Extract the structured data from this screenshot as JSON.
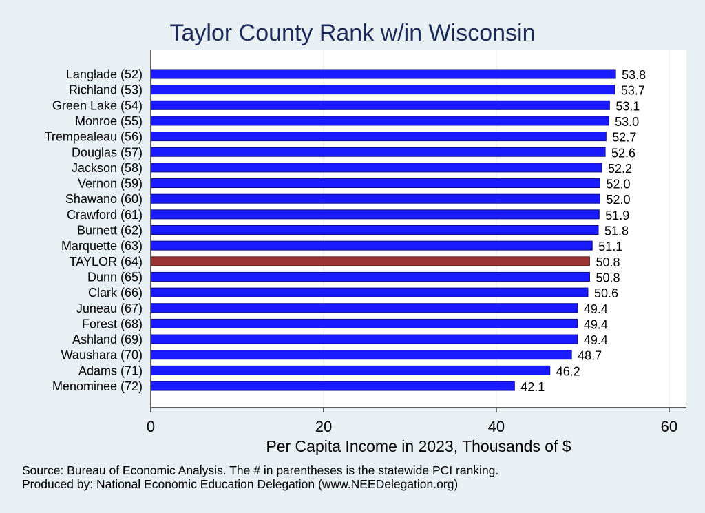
{
  "chart_data": {
    "type": "bar",
    "orientation": "horizontal",
    "title": "Taylor County Rank w/in Wisconsin",
    "xlabel": "Per Capita Income in 2023, Thousands of $",
    "ylabel": "",
    "xlim": [
      0,
      62
    ],
    "xticks": [
      0,
      20,
      40,
      60
    ],
    "grid": true,
    "categories": [
      "Langlade (52)",
      "Richland (53)",
      "Green Lake (54)",
      "Monroe (55)",
      "Trempealeau (56)",
      "Douglas (57)",
      "Jackson (58)",
      "Vernon (59)",
      "Shawano (60)",
      "Crawford (61)",
      "Burnett (62)",
      "Marquette (63)",
      "TAYLOR (64)",
      "Dunn (65)",
      "Clark (66)",
      "Juneau (67)",
      "Forest (68)",
      "Ashland (69)",
      "Waushara (70)",
      "Adams (71)",
      "Menominee (72)"
    ],
    "values": [
      53.8,
      53.7,
      53.1,
      53.0,
      52.7,
      52.6,
      52.2,
      52.0,
      52.0,
      51.9,
      51.8,
      51.1,
      50.8,
      50.8,
      50.6,
      49.4,
      49.4,
      49.4,
      48.7,
      46.2,
      42.1
    ],
    "value_labels": [
      "53.8",
      "53.7",
      "53.1",
      "53.0",
      "52.7",
      "52.6",
      "52.2",
      "52.0",
      "52.0",
      "51.9",
      "51.8",
      "51.1",
      "50.8",
      "50.8",
      "50.6",
      "49.4",
      "49.4",
      "49.4",
      "48.7",
      "46.2",
      "42.1"
    ],
    "highlight_category": "TAYLOR (64)",
    "colors": {
      "bar": "#1a1aff",
      "bar_outline": "#0a0a8a",
      "highlight": "#9b3535",
      "highlight_outline": "#6e1f1f",
      "background": "#e9f0f4",
      "plot_background": "#ffffff",
      "grid": "#e6e6e6",
      "title": "#1c2a59"
    }
  },
  "notes": {
    "source": "Source: Bureau of Economic Analysis. The # in parentheses is the statewide PCI ranking.",
    "producer": "Produced by: National Economic Education Delegation (www.NEEDelegation.org)"
  }
}
